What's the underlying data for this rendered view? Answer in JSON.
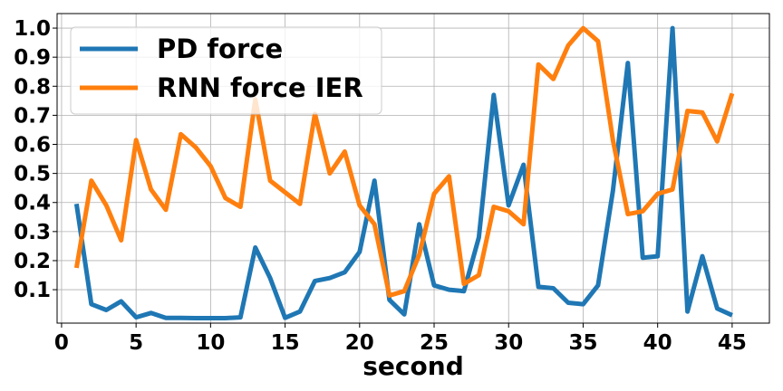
{
  "chart_data": {
    "type": "line",
    "title": "",
    "xlabel": "second",
    "ylabel": "",
    "xlim": [
      -0.3,
      47.5
    ],
    "ylim": [
      -0.015,
      1.05
    ],
    "grid": true,
    "legend_position": "upper-left",
    "x_ticks": [
      0,
      5,
      10,
      15,
      20,
      25,
      30,
      35,
      40,
      45
    ],
    "x_tick_labels": [
      "0",
      "5",
      "10",
      "15",
      "20",
      "25",
      "30",
      "35",
      "40",
      "45"
    ],
    "y_ticks": [
      0.1,
      0.2,
      0.3,
      0.4,
      0.5,
      0.6,
      0.7,
      0.8,
      0.9,
      1.0
    ],
    "y_tick_labels": [
      "0.1",
      "0.2",
      "0.3",
      "0.4",
      "0.5",
      "0.6",
      "0.7",
      "0.8",
      "0.9",
      "1.0"
    ],
    "x": [
      1,
      2,
      3,
      4,
      5,
      6,
      7,
      8,
      9,
      10,
      11,
      12,
      13,
      14,
      15,
      16,
      17,
      18,
      19,
      20,
      21,
      22,
      23,
      24,
      25,
      26,
      27,
      28,
      29,
      30,
      31,
      32,
      33,
      34,
      35,
      36,
      37,
      38,
      39,
      40,
      41,
      42,
      43,
      44,
      45
    ],
    "series": [
      {
        "name": "PD force",
        "color": "#1f77b4",
        "values": [
          0.395,
          0.05,
          0.03,
          0.06,
          0.005,
          0.02,
          0.003,
          0.003,
          0.002,
          0.002,
          0.002,
          0.005,
          0.245,
          0.14,
          0.003,
          0.025,
          0.13,
          0.14,
          0.16,
          0.23,
          0.475,
          0.065,
          0.015,
          0.325,
          0.115,
          0.1,
          0.095,
          0.28,
          0.77,
          0.39,
          0.53,
          0.11,
          0.105,
          0.055,
          0.05,
          0.115,
          0.44,
          0.88,
          0.21,
          0.215,
          1.0,
          0.025,
          0.215,
          0.035,
          0.012
        ]
      },
      {
        "name": "RNN force IER",
        "color": "#ff7f0e",
        "values": [
          0.175,
          0.475,
          0.39,
          0.27,
          0.615,
          0.445,
          0.375,
          0.635,
          0.59,
          0.525,
          0.415,
          0.385,
          0.755,
          0.475,
          0.435,
          0.395,
          0.705,
          0.5,
          0.575,
          0.39,
          0.325,
          0.08,
          0.095,
          0.22,
          0.43,
          0.49,
          0.12,
          0.15,
          0.385,
          0.37,
          0.325,
          0.875,
          0.825,
          0.94,
          1.0,
          0.955,
          0.615,
          0.36,
          0.37,
          0.43,
          0.445,
          0.715,
          0.71,
          0.61,
          0.775
        ]
      }
    ]
  }
}
